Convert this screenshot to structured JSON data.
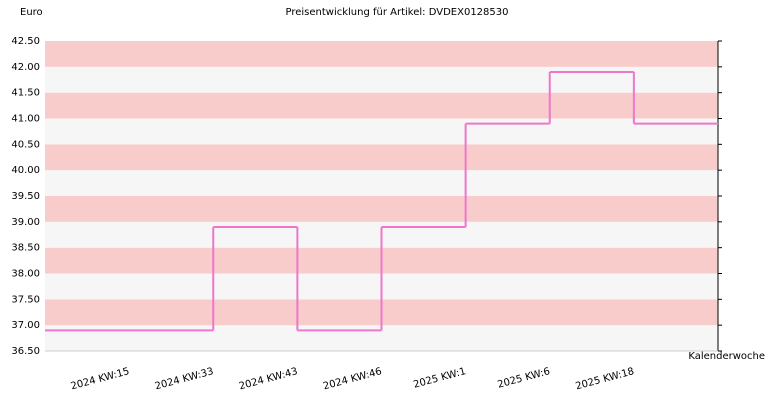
{
  "chart_data": {
    "type": "step",
    "title": "Preisentwicklung für Artikel: DVDEX0128530",
    "y_label": "Euro",
    "x_label": "Kalenderwoche",
    "categories": [
      "2024 KW:15",
      "2024 KW:33",
      "2024 KW:43",
      "2024 KW:46",
      "2025 KW:1",
      "2025 KW:6",
      "2025 KW:18"
    ],
    "values": [
      36.9,
      38.9,
      36.9,
      38.9,
      40.9,
      41.9,
      40.9
    ],
    "color": "#ee77cc",
    "ylim": [
      36.5,
      42.5
    ],
    "yticks": [
      {
        "value": 36.5,
        "label": "36.50"
      },
      {
        "value": 37,
        "label": "37.00"
      },
      {
        "value": 37.5,
        "label": "37.50"
      },
      {
        "value": 38,
        "label": "38.00"
      },
      {
        "value": 38.5,
        "label": "38.50"
      },
      {
        "value": 39,
        "label": "39.00"
      },
      {
        "value": 39.5,
        "label": "39.50"
      },
      {
        "value": 40,
        "label": "40.00"
      },
      {
        "value": 40.5,
        "label": "40.50"
      },
      {
        "value": 41,
        "label": "41.00"
      },
      {
        "value": 41.5,
        "label": "41.50"
      },
      {
        "value": 42,
        "label": "42.00"
      },
      {
        "value": 42.5,
        "label": "42.50"
      }
    ],
    "grid": true,
    "band_colors": [
      "#f6f6f6",
      "#f9cccc"
    ]
  }
}
